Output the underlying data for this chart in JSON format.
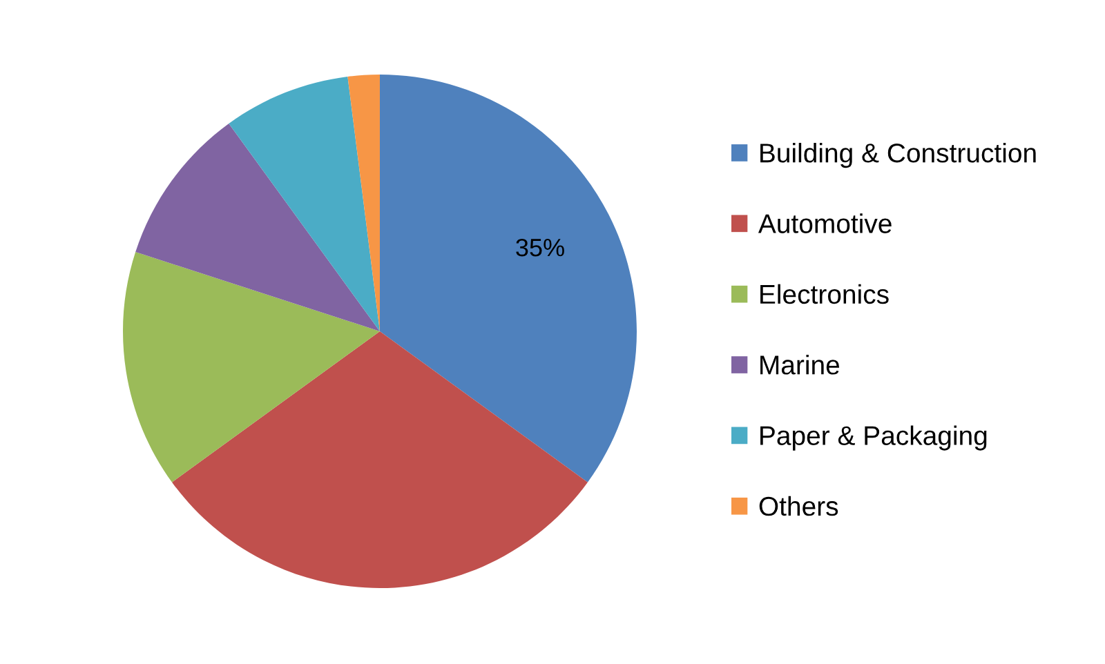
{
  "chart_data": {
    "type": "pie",
    "categories": [
      "Building & Construction",
      "Automotive",
      "Electronics",
      "Marine",
      "Paper & Packaging",
      "Others"
    ],
    "values": [
      35,
      30,
      15,
      10,
      8,
      2
    ],
    "colors": [
      "#4f81bd",
      "#c0504d",
      "#9bbb59",
      "#8064a2",
      "#4bacc6",
      "#f79646"
    ],
    "value_labels": [
      "35%",
      null,
      null,
      null,
      null,
      null
    ],
    "legend": "right"
  }
}
